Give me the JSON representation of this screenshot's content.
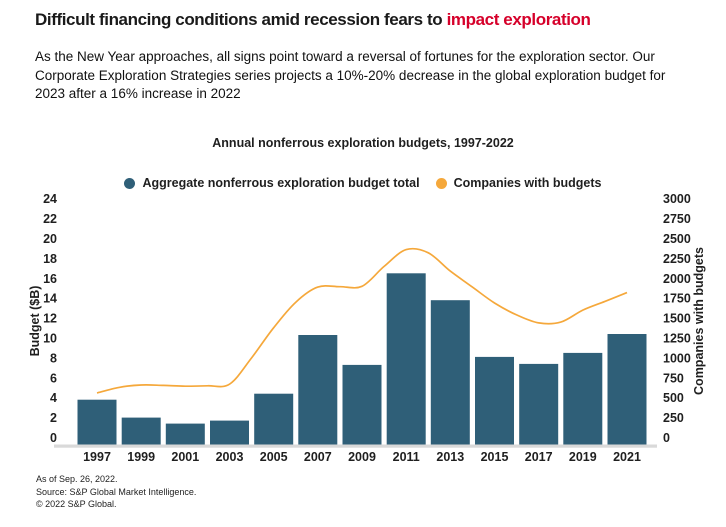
{
  "header": {
    "title_prefix": "Difficult financing conditions amid recession fears to ",
    "title_highlight": "impact exploration",
    "subtitle": "As the New Year approaches, all signs point toward a reversal of fortunes  for the exploration sector. Our Corporate Exploration Strategies series projects a 10%-20% decrease in the global exploration budget for 2023 after a 16% increase in 2022",
    "highlight_color": "#d6002a"
  },
  "chart_data": {
    "type": "bar+line",
    "title": "Annual nonferrous exploration budgets, 1997-2022",
    "legend": [
      {
        "label": "Aggregate nonferrous exploration budget total",
        "color": "#2f5f78",
        "marker": "circle"
      },
      {
        "label": "Companies with budgets",
        "color": "#f5a83b",
        "marker": "circle"
      }
    ],
    "bars": {
      "name": "Aggregate nonferrous exploration budget total",
      "axis": "left",
      "color": "#2f5f78",
      "categories": [
        1997,
        1999,
        2001,
        2003,
        2005,
        2007,
        2009,
        2011,
        2013,
        2015,
        2017,
        2019,
        2021
      ],
      "values": [
        3.8,
        2.0,
        1.4,
        1.7,
        4.4,
        10.3,
        7.3,
        16.5,
        13.8,
        8.1,
        7.4,
        8.5,
        10.4
      ]
    },
    "line": {
      "name": "Companies with budgets",
      "axis": "right",
      "color": "#f5a83b",
      "x": [
        1997,
        1998,
        1999,
        2000,
        2001,
        2002,
        2003,
        2004,
        2005,
        2006,
        2007,
        2008,
        2009,
        2010,
        2011,
        2012,
        2013,
        2014,
        2015,
        2016,
        2017,
        2018,
        2019,
        2020,
        2021
      ],
      "values": [
        560,
        630,
        660,
        655,
        645,
        650,
        670,
        1000,
        1380,
        1700,
        1890,
        1895,
        1900,
        2150,
        2360,
        2320,
        2090,
        1890,
        1690,
        1540,
        1440,
        1450,
        1600,
        1710,
        1820
      ]
    },
    "y_left": {
      "label": "Budget ($B)",
      "min": 0,
      "max": 24,
      "step": 2
    },
    "y_right": {
      "label": "Companies with budgets",
      "min": 0,
      "max": 3000,
      "step": 250
    },
    "x_tick_labels": [
      "1997",
      "1999",
      "2001",
      "2003",
      "2005",
      "2007",
      "2009",
      "2011",
      "2013",
      "2015",
      "2017",
      "2019",
      "2021"
    ],
    "grid": false,
    "legend_position": "top-center",
    "baseline_color": "#d9d9d9",
    "text_color": "#1f1f1f"
  },
  "footer": {
    "lines": [
      "As of Sep. 26, 2022.",
      "Source: S&P Global Market Intelligence.",
      "© 2022 S&P Global."
    ]
  }
}
